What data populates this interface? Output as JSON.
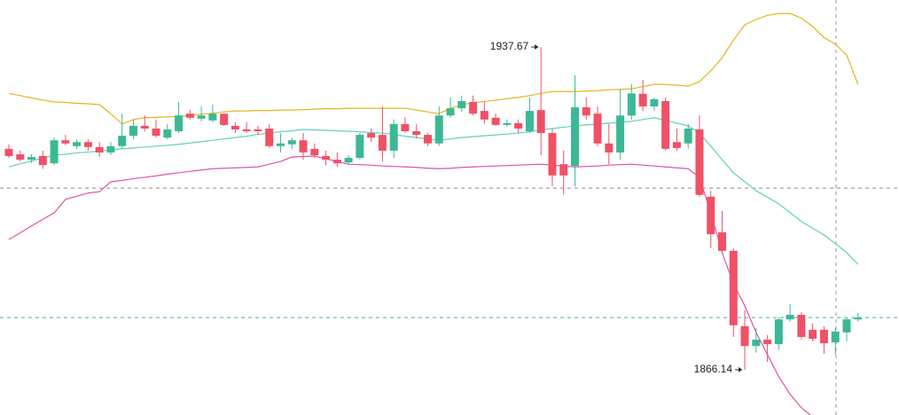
{
  "chart_data": {
    "type": "candlestick",
    "ylim": [
      1856.1,
      1948.1
    ],
    "up_color": "#3cb896",
    "down_color": "#ef5166",
    "open": [
      1915.1,
      1913.9,
      1912.7,
      1913.5,
      1911.9,
      1917.0,
      1915.7,
      1916.6,
      1915.5,
      1914.3,
      1915.7,
      1918.0,
      1920.2,
      1919.6,
      1917.6,
      1919.0,
      1922.9,
      1921.8,
      1921.4,
      1922.9,
      1920.2,
      1919.4,
      1919.4,
      1919.6,
      1915.7,
      1916.1,
      1917.0,
      1915.1,
      1913.5,
      1912.7,
      1912.1,
      1913.1,
      1918.6,
      1918.2,
      1914.7,
      1920.6,
      1919.0,
      1918.2,
      1916.3,
      1922.5,
      1924.1,
      1925.5,
      1923.5,
      1922.0,
      1920.4,
      1920.8,
      1919.0,
      1923.7,
      1918.6,
      1911.7,
      1911.3,
      1924.3,
      1922.9,
      1916.3,
      1914.3,
      1922.5,
      1927.3,
      1924.5,
      1925.7,
      1916.6,
      1916.3,
      1919.4,
      1904.5,
      1896.6,
      1892.5,
      1875.8,
      1871.4,
      1872.8,
      1871.8,
      1877.3,
      1878.3,
      1875.0,
      1875.0,
      1872.2,
      1874.4,
      1877.3
    ],
    "high": [
      1916.1,
      1914.7,
      1913.9,
      1914.7,
      1917.6,
      1918.2,
      1917.2,
      1917.2,
      1916.6,
      1916.6,
      1922.9,
      1921.6,
      1922.5,
      1921.6,
      1920.6,
      1925.5,
      1923.7,
      1924.5,
      1924.9,
      1922.9,
      1921.0,
      1921.0,
      1920.2,
      1920.6,
      1918.6,
      1917.6,
      1918.6,
      1916.3,
      1914.7,
      1914.3,
      1913.7,
      1918.6,
      1919.6,
      1924.5,
      1921.6,
      1922.1,
      1920.6,
      1918.6,
      1924.5,
      1926.5,
      1926.9,
      1926.9,
      1925.5,
      1922.9,
      1921.6,
      1921.6,
      1926.5,
      1937.67,
      1919.6,
      1914.7,
      1931.4,
      1926.5,
      1924.5,
      1920.6,
      1928.4,
      1929.4,
      1930.4,
      1926.5,
      1926.5,
      1919.6,
      1920.6,
      1922.5,
      1905.8,
      1901.3,
      1893.1,
      1879.3,
      1875.4,
      1873.8,
      1877.7,
      1880.7,
      1878.9,
      1876.4,
      1875.8,
      1875.4,
      1877.7,
      1878.7
    ],
    "low": [
      1913.1,
      1912.3,
      1911.9,
      1910.7,
      1911.5,
      1915.9,
      1915.1,
      1914.7,
      1913.3,
      1913.7,
      1915.1,
      1917.2,
      1919.0,
      1917.6,
      1917.2,
      1918.6,
      1921.6,
      1921.2,
      1921.0,
      1920.2,
      1918.6,
      1918.6,
      1918.2,
      1915.3,
      1914.3,
      1915.1,
      1912.7,
      1913.1,
      1911.5,
      1911.1,
      1911.5,
      1912.7,
      1916.6,
      1912.3,
      1913.1,
      1918.6,
      1917.4,
      1915.7,
      1915.7,
      1922.0,
      1923.3,
      1922.5,
      1920.6,
      1920.2,
      1920.0,
      1918.6,
      1918.6,
      1913.7,
      1906.8,
      1904.9,
      1906.8,
      1921.6,
      1915.7,
      1911.7,
      1912.7,
      1921.6,
      1923.5,
      1923.5,
      1914.7,
      1914.7,
      1915.1,
      1904.5,
      1893.1,
      1892.1,
      1873.4,
      1866.14,
      1869.9,
      1867.9,
      1870.5,
      1876.8,
      1872.8,
      1872.4,
      1869.7,
      1869.5,
      1872.4,
      1876.8
    ],
    "close": [
      1913.5,
      1912.7,
      1913.3,
      1911.5,
      1917.0,
      1916.3,
      1916.6,
      1915.5,
      1914.3,
      1915.7,
      1918.0,
      1920.2,
      1919.6,
      1918.0,
      1919.4,
      1922.5,
      1922.0,
      1922.5,
      1922.9,
      1920.4,
      1919.4,
      1919.0,
      1919.0,
      1915.7,
      1916.3,
      1917.0,
      1914.3,
      1913.7,
      1912.7,
      1911.9,
      1913.1,
      1918.2,
      1917.6,
      1914.7,
      1920.6,
      1919.0,
      1918.2,
      1916.3,
      1922.5,
      1924.1,
      1925.7,
      1922.9,
      1921.6,
      1920.4,
      1920.8,
      1919.6,
      1923.5,
      1918.6,
      1909.2,
      1909.2,
      1924.3,
      1922.5,
      1916.3,
      1914.3,
      1922.5,
      1927.4,
      1924.5,
      1926.1,
      1915.1,
      1915.3,
      1919.6,
      1904.9,
      1896.2,
      1892.5,
      1876.0,
      1871.4,
      1872.8,
      1871.8,
      1877.3,
      1878.3,
      1873.4,
      1873.0,
      1872.0,
      1874.6,
      1877.3,
      1877.7
    ],
    "bands": [
      {
        "color": "#e6b422",
        "values": [
          1927.4,
          1926.9,
          1926.4,
          1925.9,
          1925.5,
          1925.4,
          1925.2,
          1925.1,
          1924.9,
          1922.9,
          1920.6,
          1921.6,
          1922.0,
          1922.1,
          1922.2,
          1922.3,
          1922.5,
          1922.8,
          1923.0,
          1923.3,
          1923.5,
          1923.5,
          1923.6,
          1923.6,
          1923.7,
          1923.7,
          1923.8,
          1923.9,
          1924.0,
          1924.0,
          1924.1,
          1924.1,
          1924.1,
          1924.1,
          1924.1,
          1924.1,
          1923.7,
          1923.3,
          1922.9,
          1924.1,
          1924.9,
          1925.3,
          1925.6,
          1925.9,
          1926.2,
          1926.5,
          1926.9,
          1927.4,
          1927.8,
          1927.8,
          1927.8,
          1927.9,
          1928.0,
          1928.2,
          1928.3,
          1928.4,
          1928.9,
          1929.4,
          1929.4,
          1929.2,
          1929.0,
          1930.0,
          1932.4,
          1935.3,
          1939.2,
          1942.6,
          1943.8,
          1944.7,
          1945.1,
          1945.1,
          1944.1,
          1942.2,
          1939.8,
          1938.3,
          1935.9,
          1929.4
        ]
      },
      {
        "color": "#5fd3b3",
        "values": [
          1911.1,
          1911.8,
          1912.4,
          1913.1,
          1913.7,
          1913.9,
          1914.2,
          1914.4,
          1914.6,
          1914.9,
          1915.1,
          1915.3,
          1915.5,
          1915.7,
          1915.9,
          1916.1,
          1916.4,
          1916.7,
          1917.0,
          1917.3,
          1917.6,
          1917.9,
          1918.3,
          1918.6,
          1918.9,
          1919.1,
          1919.4,
          1919.3,
          1919.2,
          1919.1,
          1919.0,
          1918.9,
          1918.7,
          1918.6,
          1918.3,
          1917.9,
          1917.6,
          1917.3,
          1917.0,
          1917.3,
          1917.6,
          1917.8,
          1918.0,
          1918.2,
          1918.4,
          1918.6,
          1918.9,
          1919.3,
          1919.6,
          1919.9,
          1920.2,
          1920.4,
          1920.6,
          1920.8,
          1921.0,
          1921.2,
          1921.6,
          1922.0,
          1921.4,
          1920.8,
          1920.2,
          1918.6,
          1915.7,
          1912.7,
          1909.8,
          1907.8,
          1905.8,
          1904.4,
          1902.9,
          1901.0,
          1899.0,
          1897.5,
          1896.0,
          1894.1,
          1892.1,
          1889.5
        ]
      },
      {
        "color": "#e052a8",
        "values": [
          1895.0,
          1896.5,
          1898.0,
          1899.5,
          1900.9,
          1903.9,
          1904.6,
          1905.3,
          1905.6,
          1907.8,
          1908.1,
          1908.5,
          1908.8,
          1909.1,
          1909.5,
          1909.8,
          1910.1,
          1910.4,
          1910.7,
          1910.8,
          1910.9,
          1911.0,
          1911.1,
          1911.7,
          1912.3,
          1913.3,
          1913.4,
          1913.5,
          1912.9,
          1912.3,
          1911.7,
          1911.6,
          1911.5,
          1911.3,
          1911.2,
          1911.1,
          1911.0,
          1910.8,
          1910.7,
          1910.8,
          1911.0,
          1911.1,
          1911.2,
          1911.3,
          1911.4,
          1911.5,
          1911.6,
          1911.7,
          1911.5,
          1911.3,
          1911.1,
          1911.2,
          1911.3,
          1911.5,
          1911.6,
          1911.7,
          1911.5,
          1911.3,
          1911.1,
          1910.9,
          1910.7,
          1908.8,
          1900.9,
          1892.1,
          1885.2,
          1880.3,
          1874.4,
          1869.5,
          1864.6,
          1860.7,
          1857.7,
          1855.7,
          null,
          null,
          null,
          null
        ]
      }
    ],
    "price_lines": [
      {
        "value": 1906.4,
        "color": "#8c8c8c"
      },
      {
        "value": 1877.7,
        "color": "#3cb896"
      }
    ],
    "max_label": "1937.67",
    "min_label": "1866.14"
  }
}
